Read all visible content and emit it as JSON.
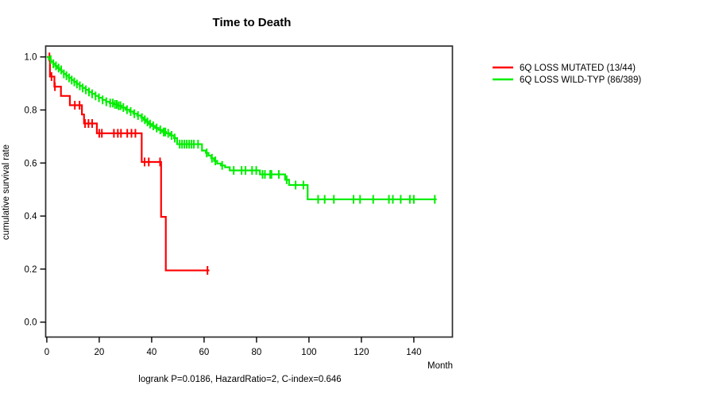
{
  "figure": {
    "background": "#ffffff"
  },
  "chart_data": {
    "type": "line",
    "subtype": "kaplan-meier-step",
    "title": "Time to Death",
    "xlabel": "Month",
    "ylabel": "cumulative survival rate",
    "footer": "logrank P=0.0186, HazardRatio=2, C-index=0.646",
    "xlim": [
      0,
      155
    ],
    "ylim": [
      0.0,
      1.0
    ],
    "xticks": [
      0,
      20,
      40,
      60,
      80,
      100,
      120,
      140
    ],
    "yticks": [
      0.0,
      0.2,
      0.4,
      0.6,
      0.8,
      1.0
    ],
    "grid": false,
    "legend_position": "right-outside",
    "series": [
      {
        "name": "6Q LOSS MUTATED (13/44)",
        "color": "#ff0000",
        "end": 62.0,
        "steps": [
          [
            0,
            1.0
          ],
          [
            1.2,
            0.926
          ],
          [
            2.9,
            0.888
          ],
          [
            5.4,
            0.853
          ],
          [
            8.8,
            0.818
          ],
          [
            13.4,
            0.783
          ],
          [
            14.2,
            0.749
          ],
          [
            19.1,
            0.712
          ],
          [
            36.2,
            0.604
          ],
          [
            43.6,
            0.397
          ],
          [
            45.4,
            0.195
          ]
        ],
        "censors": [
          1.0,
          1.8,
          3.1,
          10.7,
          12.5,
          14.6,
          15.9,
          17.3,
          20.0,
          21.0,
          25.6,
          27.1,
          28.3,
          30.7,
          32.3,
          33.8,
          37.3,
          38.9,
          43.2,
          61.3
        ]
      },
      {
        "name": "6Q LOSS WILD-TYP (86/389)",
        "color": "#00ee00",
        "end": 148.7,
        "steps": [
          [
            0,
            1.0
          ],
          [
            0.8,
            0.99
          ],
          [
            1.6,
            0.982
          ],
          [
            2.4,
            0.974
          ],
          [
            3.2,
            0.966
          ],
          [
            4,
            0.958
          ],
          [
            4.8,
            0.951
          ],
          [
            5.6,
            0.944
          ],
          [
            6.5,
            0.936
          ],
          [
            7.4,
            0.929
          ],
          [
            8.4,
            0.921
          ],
          [
            9.4,
            0.913
          ],
          [
            10.4,
            0.906
          ],
          [
            11.4,
            0.898
          ],
          [
            12.5,
            0.891
          ],
          [
            13.6,
            0.883
          ],
          [
            14.8,
            0.876
          ],
          [
            16,
            0.868
          ],
          [
            17.2,
            0.861
          ],
          [
            18.5,
            0.853
          ],
          [
            19.8,
            0.846
          ],
          [
            21.2,
            0.838
          ],
          [
            22.6,
            0.831
          ],
          [
            24,
            0.826
          ],
          [
            25.5,
            0.821
          ],
          [
            27,
            0.816
          ],
          [
            28.5,
            0.809
          ],
          [
            30,
            0.801
          ],
          [
            31.5,
            0.794
          ],
          [
            33,
            0.786
          ],
          [
            34.5,
            0.779
          ],
          [
            36,
            0.771
          ],
          [
            37,
            0.763
          ],
          [
            38,
            0.755
          ],
          [
            39,
            0.747
          ],
          [
            40,
            0.74
          ],
          [
            41.3,
            0.732
          ],
          [
            42.6,
            0.725
          ],
          [
            44,
            0.717
          ],
          [
            45.5,
            0.712
          ],
          [
            47,
            0.704
          ],
          [
            48.5,
            0.694
          ],
          [
            49.7,
            0.671
          ],
          [
            59.2,
            0.647
          ],
          [
            60.7,
            0.638
          ],
          [
            61.7,
            0.628
          ],
          [
            62.7,
            0.618
          ],
          [
            63.8,
            0.608
          ],
          [
            65,
            0.598
          ],
          [
            66.4,
            0.591
          ],
          [
            68,
            0.584
          ],
          [
            69.8,
            0.572
          ],
          [
            81.3,
            0.557
          ],
          [
            90.9,
            0.537
          ],
          [
            92.4,
            0.517
          ],
          [
            99.5,
            0.463
          ]
        ],
        "censors": [
          1.5,
          2.5,
          3.5,
          4.5,
          5.5,
          6.5,
          7.5,
          8.5,
          9.5,
          10.5,
          11.5,
          12.6,
          13.7,
          14.9,
          16.1,
          17.3,
          18.6,
          19.9,
          21.3,
          22.7,
          24.2,
          25.2,
          26.0,
          26.7,
          27.4,
          28.1,
          29.2,
          30.6,
          32.0,
          33.4,
          34.8,
          36.3,
          37.4,
          38.4,
          39.4,
          40.6,
          41.9,
          43.3,
          44.6,
          45.2,
          46.3,
          47.6,
          48.8,
          50.7,
          51.6,
          52.5,
          53.4,
          54.3,
          55.2,
          56.1,
          57.7,
          61.0,
          63.0,
          64.3,
          66.9,
          71.3,
          74.3,
          75.8,
          78.3,
          79.9,
          82.3,
          83.2,
          85.2,
          85.7,
          88.5,
          91.5,
          94.9,
          97.9,
          103.5,
          106.0,
          109.5,
          117.0,
          119.5,
          124.5,
          130.5,
          132.0,
          135.0,
          138.5,
          140.0,
          148.0
        ]
      }
    ]
  }
}
